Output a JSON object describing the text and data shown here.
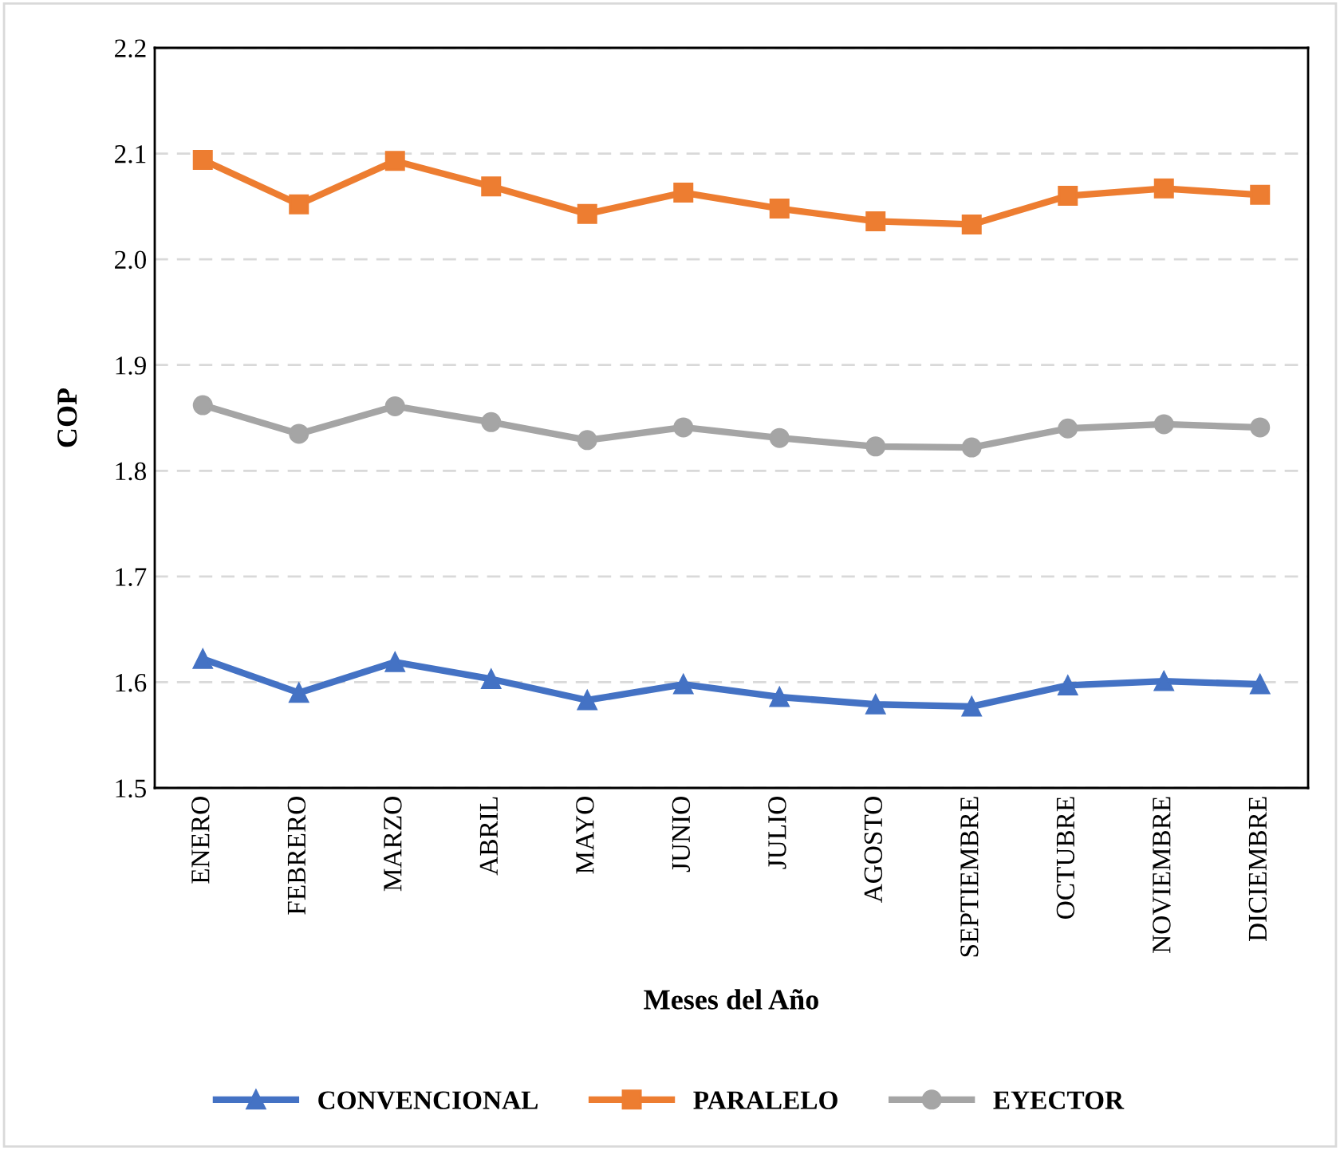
{
  "chart_data": {
    "type": "line",
    "xlabel": "Meses del Año",
    "ylabel": "COP",
    "categories": [
      "ENERO",
      "FEBRERO",
      "MARZO",
      "ABRIL",
      "MAYO",
      "JUNIO",
      "JULIO",
      "AGOSTO",
      "SEPTIEMBRE",
      "OCTUBRE",
      "NOVIEMBRE",
      "DICIEMBRE"
    ],
    "series": [
      {
        "name": "CONVENCIONAL",
        "color": "#4472c4",
        "marker": "triangle",
        "values": [
          1.622,
          1.59,
          1.619,
          1.603,
          1.583,
          1.598,
          1.586,
          1.579,
          1.577,
          1.597,
          1.601,
          1.598
        ]
      },
      {
        "name": "PARALELO",
        "color": "#ed7d31",
        "marker": "square",
        "values": [
          2.094,
          2.052,
          2.093,
          2.069,
          2.043,
          2.063,
          2.048,
          2.036,
          2.033,
          2.06,
          2.067,
          2.061
        ]
      },
      {
        "name": "EYECTOR",
        "color": "#a5a5a5",
        "marker": "circle",
        "values": [
          1.862,
          1.835,
          1.861,
          1.846,
          1.829,
          1.841,
          1.831,
          1.823,
          1.822,
          1.84,
          1.844,
          1.841
        ]
      }
    ],
    "ylim": [
      1.5,
      2.2
    ],
    "yticks": [
      {
        "value": 1.5,
        "label": "1.5"
      },
      {
        "value": 1.6,
        "label": "1.6"
      },
      {
        "value": 1.7,
        "label": "1.7"
      },
      {
        "value": 1.8,
        "label": "1.8"
      },
      {
        "value": 1.9,
        "label": "1.9"
      },
      {
        "value": 2.0,
        "label": "2.0"
      },
      {
        "value": 2.1,
        "label": "2.1"
      },
      {
        "value": 2.2,
        "label": "2.2"
      }
    ],
    "grid": "y",
    "legend": "bottom",
    "line_style": "solid"
  }
}
